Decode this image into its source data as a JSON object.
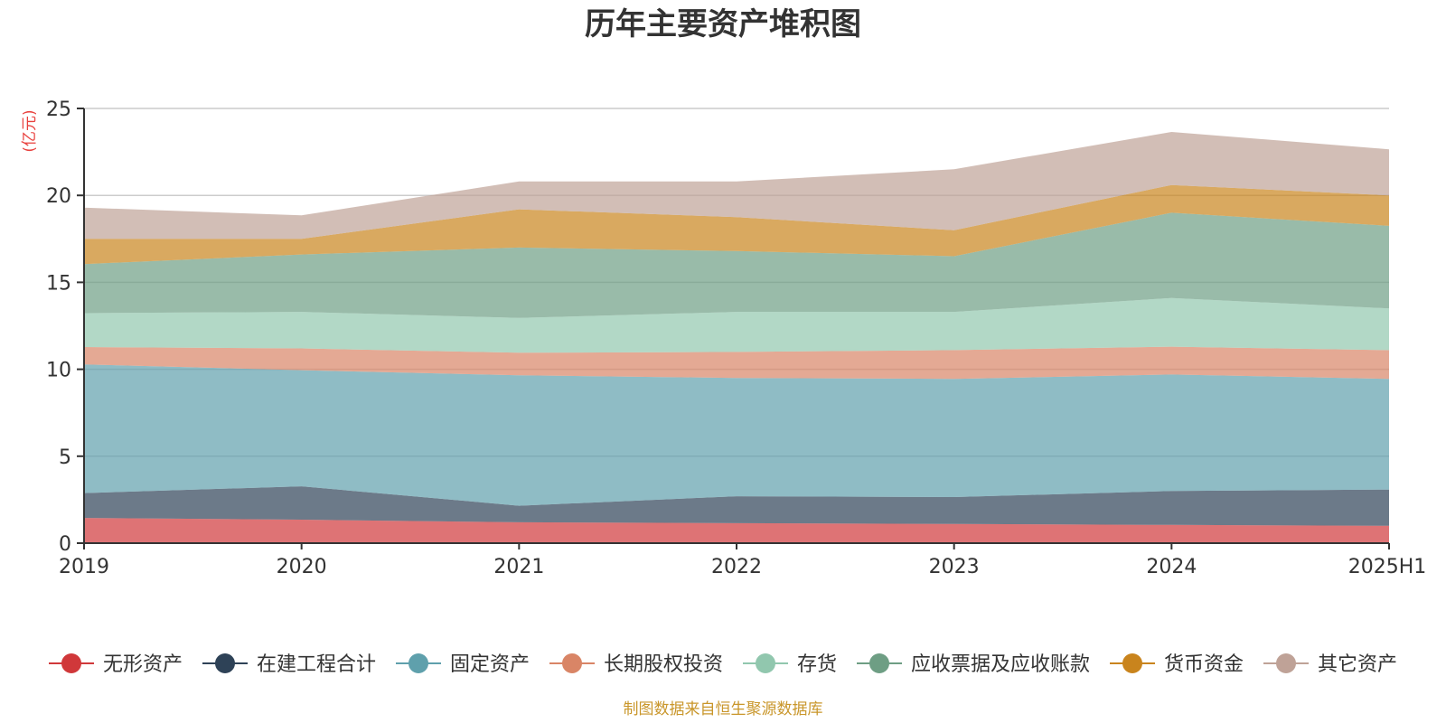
{
  "chart_data": {
    "type": "area",
    "stacked": true,
    "title": "历年主要资产堆积图",
    "ylabel": "(亿元)",
    "xlabel": "",
    "categories": [
      "2019",
      "2020",
      "2021",
      "2022",
      "2023",
      "2024",
      "2025H1"
    ],
    "ylim": [
      0,
      25
    ],
    "yticks": [
      0,
      5,
      10,
      15,
      20,
      25
    ],
    "grid": true,
    "legend_position": "bottom",
    "series": [
      {
        "name": "无形资产",
        "color": "#d0383a",
        "values": [
          1.45,
          1.35,
          1.2,
          1.15,
          1.1,
          1.05,
          1.0
        ]
      },
      {
        "name": "在建工程合计",
        "color": "#2e4257",
        "values": [
          1.43,
          1.92,
          0.95,
          1.55,
          1.55,
          1.95,
          2.08
        ]
      },
      {
        "name": "固定资产",
        "color": "#5fa0ac",
        "values": [
          7.4,
          6.68,
          7.5,
          6.8,
          6.8,
          6.7,
          6.37
        ]
      },
      {
        "name": "长期股权投资",
        "color": "#d98566",
        "values": [
          1.0,
          1.25,
          1.3,
          1.5,
          1.65,
          1.6,
          1.65
        ]
      },
      {
        "name": "存货",
        "color": "#91c7ae",
        "values": [
          1.95,
          2.1,
          2.0,
          2.3,
          2.2,
          2.8,
          2.4
        ]
      },
      {
        "name": "应收票据及应收账款",
        "color": "#6e9e84",
        "values": [
          2.82,
          3.3,
          4.05,
          3.5,
          3.2,
          4.9,
          4.75
        ]
      },
      {
        "name": "货币资金",
        "color": "#c9841d",
        "values": [
          1.45,
          0.9,
          2.2,
          1.95,
          1.5,
          1.6,
          1.75
        ]
      },
      {
        "name": "其它资产",
        "color": "#bfa297",
        "values": [
          1.8,
          1.35,
          1.6,
          2.05,
          3.5,
          3.05,
          2.65
        ]
      }
    ],
    "source_note": "制图数据来自恒生聚源数据库"
  }
}
